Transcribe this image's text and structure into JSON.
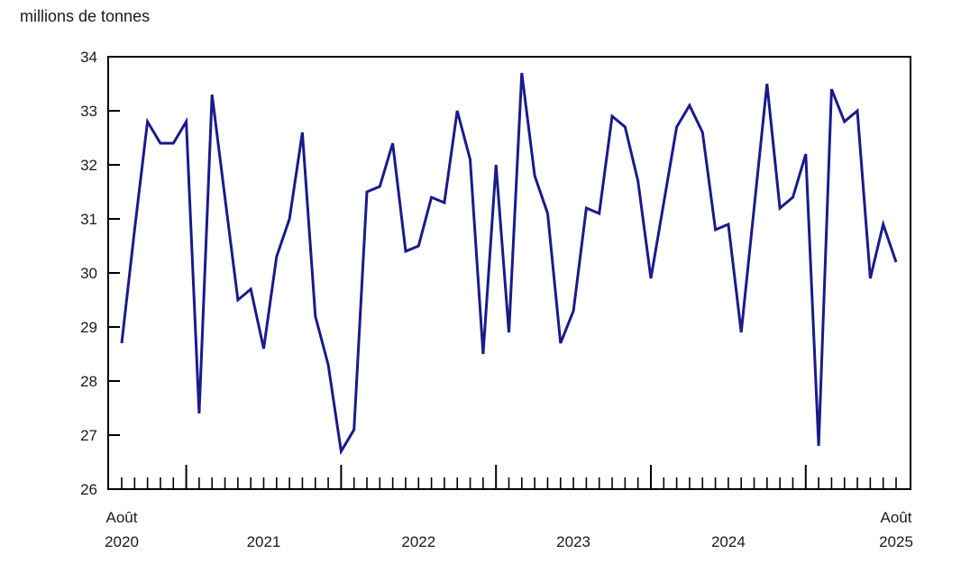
{
  "title": "millions de tonnes",
  "chart_data": {
    "type": "line",
    "title": "millions de tonnes",
    "ylabel": "millions de tonnes",
    "xlabel": "",
    "ylim": [
      26,
      34
    ],
    "y_ticks": [
      26,
      27,
      28,
      29,
      30,
      31,
      32,
      33,
      34
    ],
    "grid": "off",
    "legend_position": "none",
    "line_color": "#1a1a8c",
    "axis_color": "#000000",
    "x": [
      "2020-08",
      "2020-09",
      "2020-10",
      "2020-11",
      "2020-12",
      "2021-01",
      "2021-02",
      "2021-03",
      "2021-04",
      "2021-05",
      "2021-06",
      "2021-07",
      "2021-08",
      "2021-09",
      "2021-10",
      "2021-11",
      "2021-12",
      "2022-01",
      "2022-02",
      "2022-03",
      "2022-04",
      "2022-05",
      "2022-06",
      "2022-07",
      "2022-08",
      "2022-09",
      "2022-10",
      "2022-11",
      "2022-12",
      "2023-01",
      "2023-02",
      "2023-03",
      "2023-04",
      "2023-05",
      "2023-06",
      "2023-07",
      "2023-08",
      "2023-09",
      "2023-10",
      "2023-11",
      "2023-12",
      "2024-01",
      "2024-02",
      "2024-03",
      "2024-04",
      "2024-05",
      "2024-06",
      "2024-07",
      "2024-08",
      "2024-09",
      "2024-10",
      "2024-11",
      "2024-12",
      "2025-01",
      "2025-02",
      "2025-03",
      "2025-04",
      "2025-05",
      "2025-06",
      "2025-07",
      "2025-08"
    ],
    "series": [
      {
        "name": "millions de tonnes",
        "values": [
          28.7,
          30.8,
          32.8,
          32.4,
          32.4,
          32.8,
          27.4,
          33.3,
          31.4,
          29.5,
          29.7,
          28.6,
          30.3,
          31.0,
          32.6,
          29.2,
          28.3,
          26.7,
          27.1,
          31.5,
          31.6,
          32.4,
          30.4,
          30.5,
          31.4,
          31.3,
          33.0,
          32.1,
          28.5,
          32.0,
          28.9,
          33.7,
          31.8,
          31.1,
          28.7,
          29.3,
          31.2,
          31.1,
          32.9,
          32.7,
          31.7,
          29.9,
          31.3,
          32.7,
          33.1,
          32.6,
          30.8,
          30.9,
          28.9,
          31.2,
          33.5,
          31.2,
          31.4,
          32.2,
          26.8,
          33.4,
          32.8,
          33.0,
          29.9,
          30.9,
          30.2
        ]
      }
    ],
    "x_axis_tick_labels": [
      {
        "top": "Août",
        "bottom": "2020",
        "month_index": 0
      },
      {
        "top": "",
        "bottom": "2021",
        "month_index": 11
      },
      {
        "top": "",
        "bottom": "2022",
        "month_index": 23
      },
      {
        "top": "",
        "bottom": "2023",
        "month_index": 35
      },
      {
        "top": "",
        "bottom": "2024",
        "month_index": 47
      },
      {
        "top": "Août",
        "bottom": "2025",
        "month_index": 60
      }
    ],
    "major_tick_month_indices": [
      5,
      17,
      29,
      41,
      53
    ]
  }
}
